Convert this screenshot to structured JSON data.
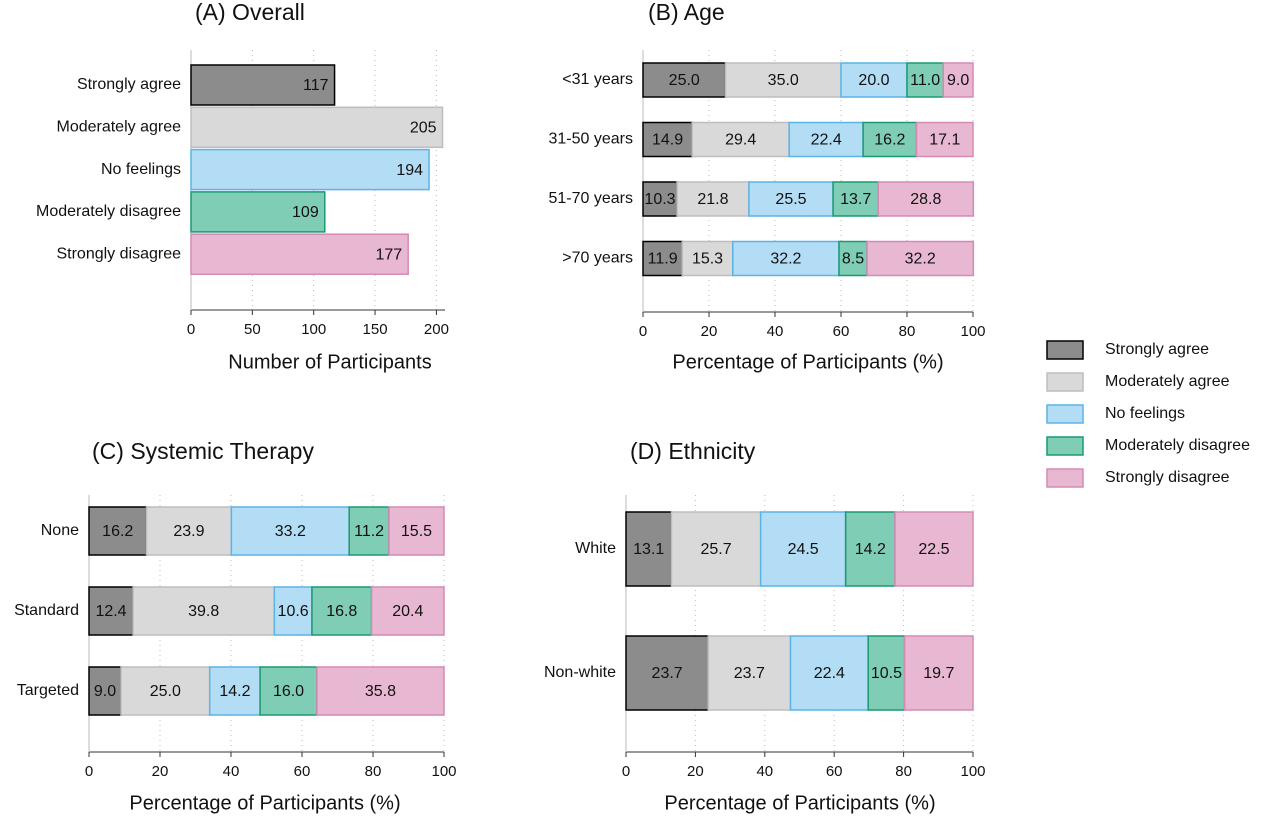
{
  "chart_data": [
    {
      "type": "bar",
      "orientation": "horizontal",
      "title": "(A) Overall",
      "xlabel": "Number of Participants",
      "categories": [
        "Strongly agree",
        "Moderately agree",
        "No feelings",
        "Moderately disagree",
        "Strongly disagree"
      ],
      "values": [
        117,
        205,
        194,
        109,
        177
      ],
      "colors": [
        "#8c8c8c",
        "#d9d9d9",
        "#b3dcf5",
        "#7fcdb4",
        "#e8b8d2"
      ],
      "edgecolors": [
        "#000000",
        "#bdbdbd",
        "#5ab4e5",
        "#1a9a74",
        "#d58ab3"
      ],
      "xlim": [
        0,
        207
      ],
      "xticks": [
        0,
        50,
        100,
        150,
        200
      ],
      "grid": true
    },
    {
      "type": "stacked_bar",
      "orientation": "horizontal",
      "title": "(B) Age",
      "xlabel": "Percentage of Participants (%)",
      "categories": [
        "<31 years",
        "31-50 years",
        "51-70 years",
        ">70 years"
      ],
      "series": [
        {
          "name": "Strongly agree",
          "color": "#8c8c8c",
          "edgecolor": "#000000",
          "values": [
            25.0,
            14.9,
            10.3,
            11.9
          ],
          "value_labels": [
            "25.0",
            "14.9",
            "10.3",
            "11.9"
          ]
        },
        {
          "name": "Moderately agree",
          "color": "#d9d9d9",
          "edgecolor": "#bdbdbd",
          "values": [
            35.0,
            29.4,
            21.8,
            15.3
          ],
          "value_labels": [
            "35.0",
            "29.4",
            "21.8",
            "15.3"
          ]
        },
        {
          "name": "No feelings",
          "color": "#b3dcf5",
          "edgecolor": "#5ab4e5",
          "values": [
            20.0,
            22.4,
            25.5,
            32.2
          ],
          "value_labels": [
            "20.0",
            "22.4",
            "25.5",
            "32.2"
          ]
        },
        {
          "name": "Moderately disagree",
          "color": "#7fcdb4",
          "edgecolor": "#1a9a74",
          "values": [
            11.0,
            16.2,
            13.7,
            8.5
          ],
          "value_labels": [
            "11.0",
            "16.2",
            "13.7",
            "8.5"
          ]
        },
        {
          "name": "Strongly disagree",
          "color": "#e8b8d2",
          "edgecolor": "#d58ab3",
          "values": [
            9.0,
            17.1,
            28.8,
            32.2
          ],
          "value_labels": [
            "9.0",
            "17.1",
            "28.8",
            "32.2"
          ]
        }
      ],
      "xlim": [
        0,
        100
      ],
      "xticks": [
        0,
        20,
        40,
        60,
        80,
        100
      ],
      "grid": true,
      "legend": "right"
    },
    {
      "type": "stacked_bar",
      "orientation": "horizontal",
      "title": "(C) Systemic Therapy",
      "xlabel": "Percentage of Participants (%)",
      "categories": [
        "None",
        "Standard",
        "Targeted"
      ],
      "series": [
        {
          "name": "Strongly agree",
          "color": "#8c8c8c",
          "edgecolor": "#000000",
          "values": [
            16.2,
            12.4,
            9.0
          ],
          "value_labels": [
            "16.2",
            "12.4",
            "9.0"
          ]
        },
        {
          "name": "Moderately agree",
          "color": "#d9d9d9",
          "edgecolor": "#bdbdbd",
          "values": [
            23.9,
            39.8,
            25.0
          ],
          "value_labels": [
            "23.9",
            "39.8",
            "25.0"
          ]
        },
        {
          "name": "No feelings",
          "color": "#b3dcf5",
          "edgecolor": "#5ab4e5",
          "values": [
            33.2,
            10.6,
            14.2
          ],
          "value_labels": [
            "33.2",
            "10.6",
            "14.2"
          ]
        },
        {
          "name": "Moderately disagree",
          "color": "#7fcdb4",
          "edgecolor": "#1a9a74",
          "values": [
            11.2,
            16.8,
            16.0
          ],
          "value_labels": [
            "11.2",
            "16.8",
            "16.0"
          ]
        },
        {
          "name": "Strongly disagree",
          "color": "#e8b8d2",
          "edgecolor": "#d58ab3",
          "values": [
            15.5,
            20.4,
            35.8
          ],
          "value_labels": [
            "15.5",
            "20.4",
            "35.8"
          ]
        }
      ],
      "xlim": [
        0,
        100
      ],
      "xticks": [
        0,
        20,
        40,
        60,
        80,
        100
      ],
      "grid": true
    },
    {
      "type": "stacked_bar",
      "orientation": "horizontal",
      "title": "(D) Ethnicity",
      "xlabel": "Percentage of Participants (%)",
      "categories": [
        "White",
        "Non-white"
      ],
      "series": [
        {
          "name": "Strongly agree",
          "color": "#8c8c8c",
          "edgecolor": "#000000",
          "values": [
            13.1,
            23.7
          ],
          "value_labels": [
            "13.1",
            "23.7"
          ]
        },
        {
          "name": "Moderately agree",
          "color": "#d9d9d9",
          "edgecolor": "#bdbdbd",
          "values": [
            25.7,
            23.7
          ],
          "value_labels": [
            "25.7",
            "23.7"
          ]
        },
        {
          "name": "No feelings",
          "color": "#b3dcf5",
          "edgecolor": "#5ab4e5",
          "values": [
            24.5,
            22.4
          ],
          "value_labels": [
            "24.5",
            "22.4"
          ]
        },
        {
          "name": "Moderately disagree",
          "color": "#7fcdb4",
          "edgecolor": "#1a9a74",
          "values": [
            14.2,
            10.5
          ],
          "value_labels": [
            "14.2",
            "10.5"
          ]
        },
        {
          "name": "Strongly disagree",
          "color": "#e8b8d2",
          "edgecolor": "#d58ab3",
          "values": [
            22.5,
            19.7
          ],
          "value_labels": [
            "22.5",
            "19.7"
          ]
        }
      ],
      "xlim": [
        0,
        100
      ],
      "xticks": [
        0,
        20,
        40,
        60,
        80,
        100
      ],
      "grid": true
    }
  ]
}
